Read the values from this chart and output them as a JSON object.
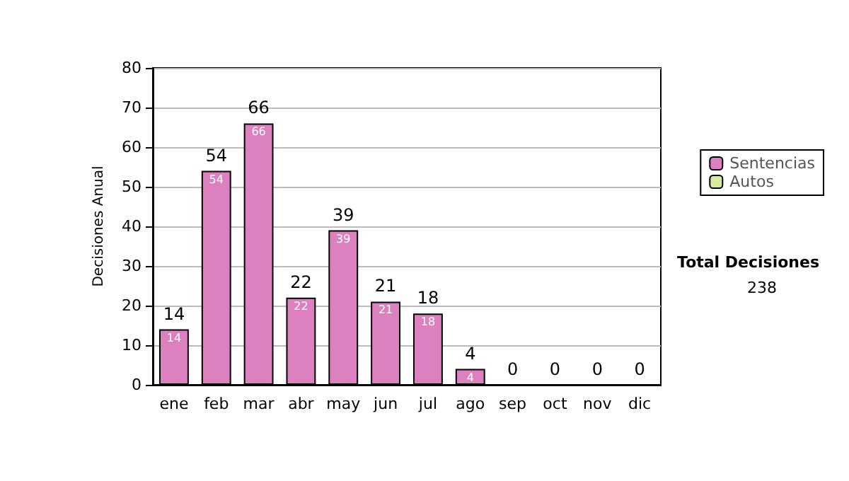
{
  "chart_data": {
    "type": "bar",
    "stacked": true,
    "ylabel": "Decisiones Anual",
    "categories": [
      "ene",
      "feb",
      "mar",
      "abr",
      "may",
      "jun",
      "jul",
      "ago",
      "sep",
      "oct",
      "nov",
      "dic"
    ],
    "series": [
      {
        "name": "Sentencias",
        "color": "#dd80c0",
        "values": [
          14,
          54,
          66,
          22,
          39,
          21,
          18,
          4,
          0,
          0,
          0,
          0
        ],
        "value_labels": [
          "14",
          "54",
          "66",
          "22",
          "39",
          "21",
          "18",
          "4",
          null,
          null,
          null,
          null
        ]
      },
      {
        "name": "Autos",
        "color": "#d8eaa0",
        "values": [
          0,
          0,
          0,
          0,
          0,
          0,
          0,
          0,
          0,
          0,
          0,
          0
        ]
      }
    ],
    "totals": [
      "14",
      "54",
      "66",
      "22",
      "39",
      "21",
      "18",
      "4",
      "0",
      "0",
      "0",
      "0"
    ],
    "ylim": [
      0,
      80
    ],
    "yticks": [
      0,
      10,
      20,
      30,
      40,
      50,
      60,
      70,
      80
    ],
    "grid": "y",
    "legend": "right",
    "annotations": [
      "Total Decisiones",
      "238"
    ]
  }
}
